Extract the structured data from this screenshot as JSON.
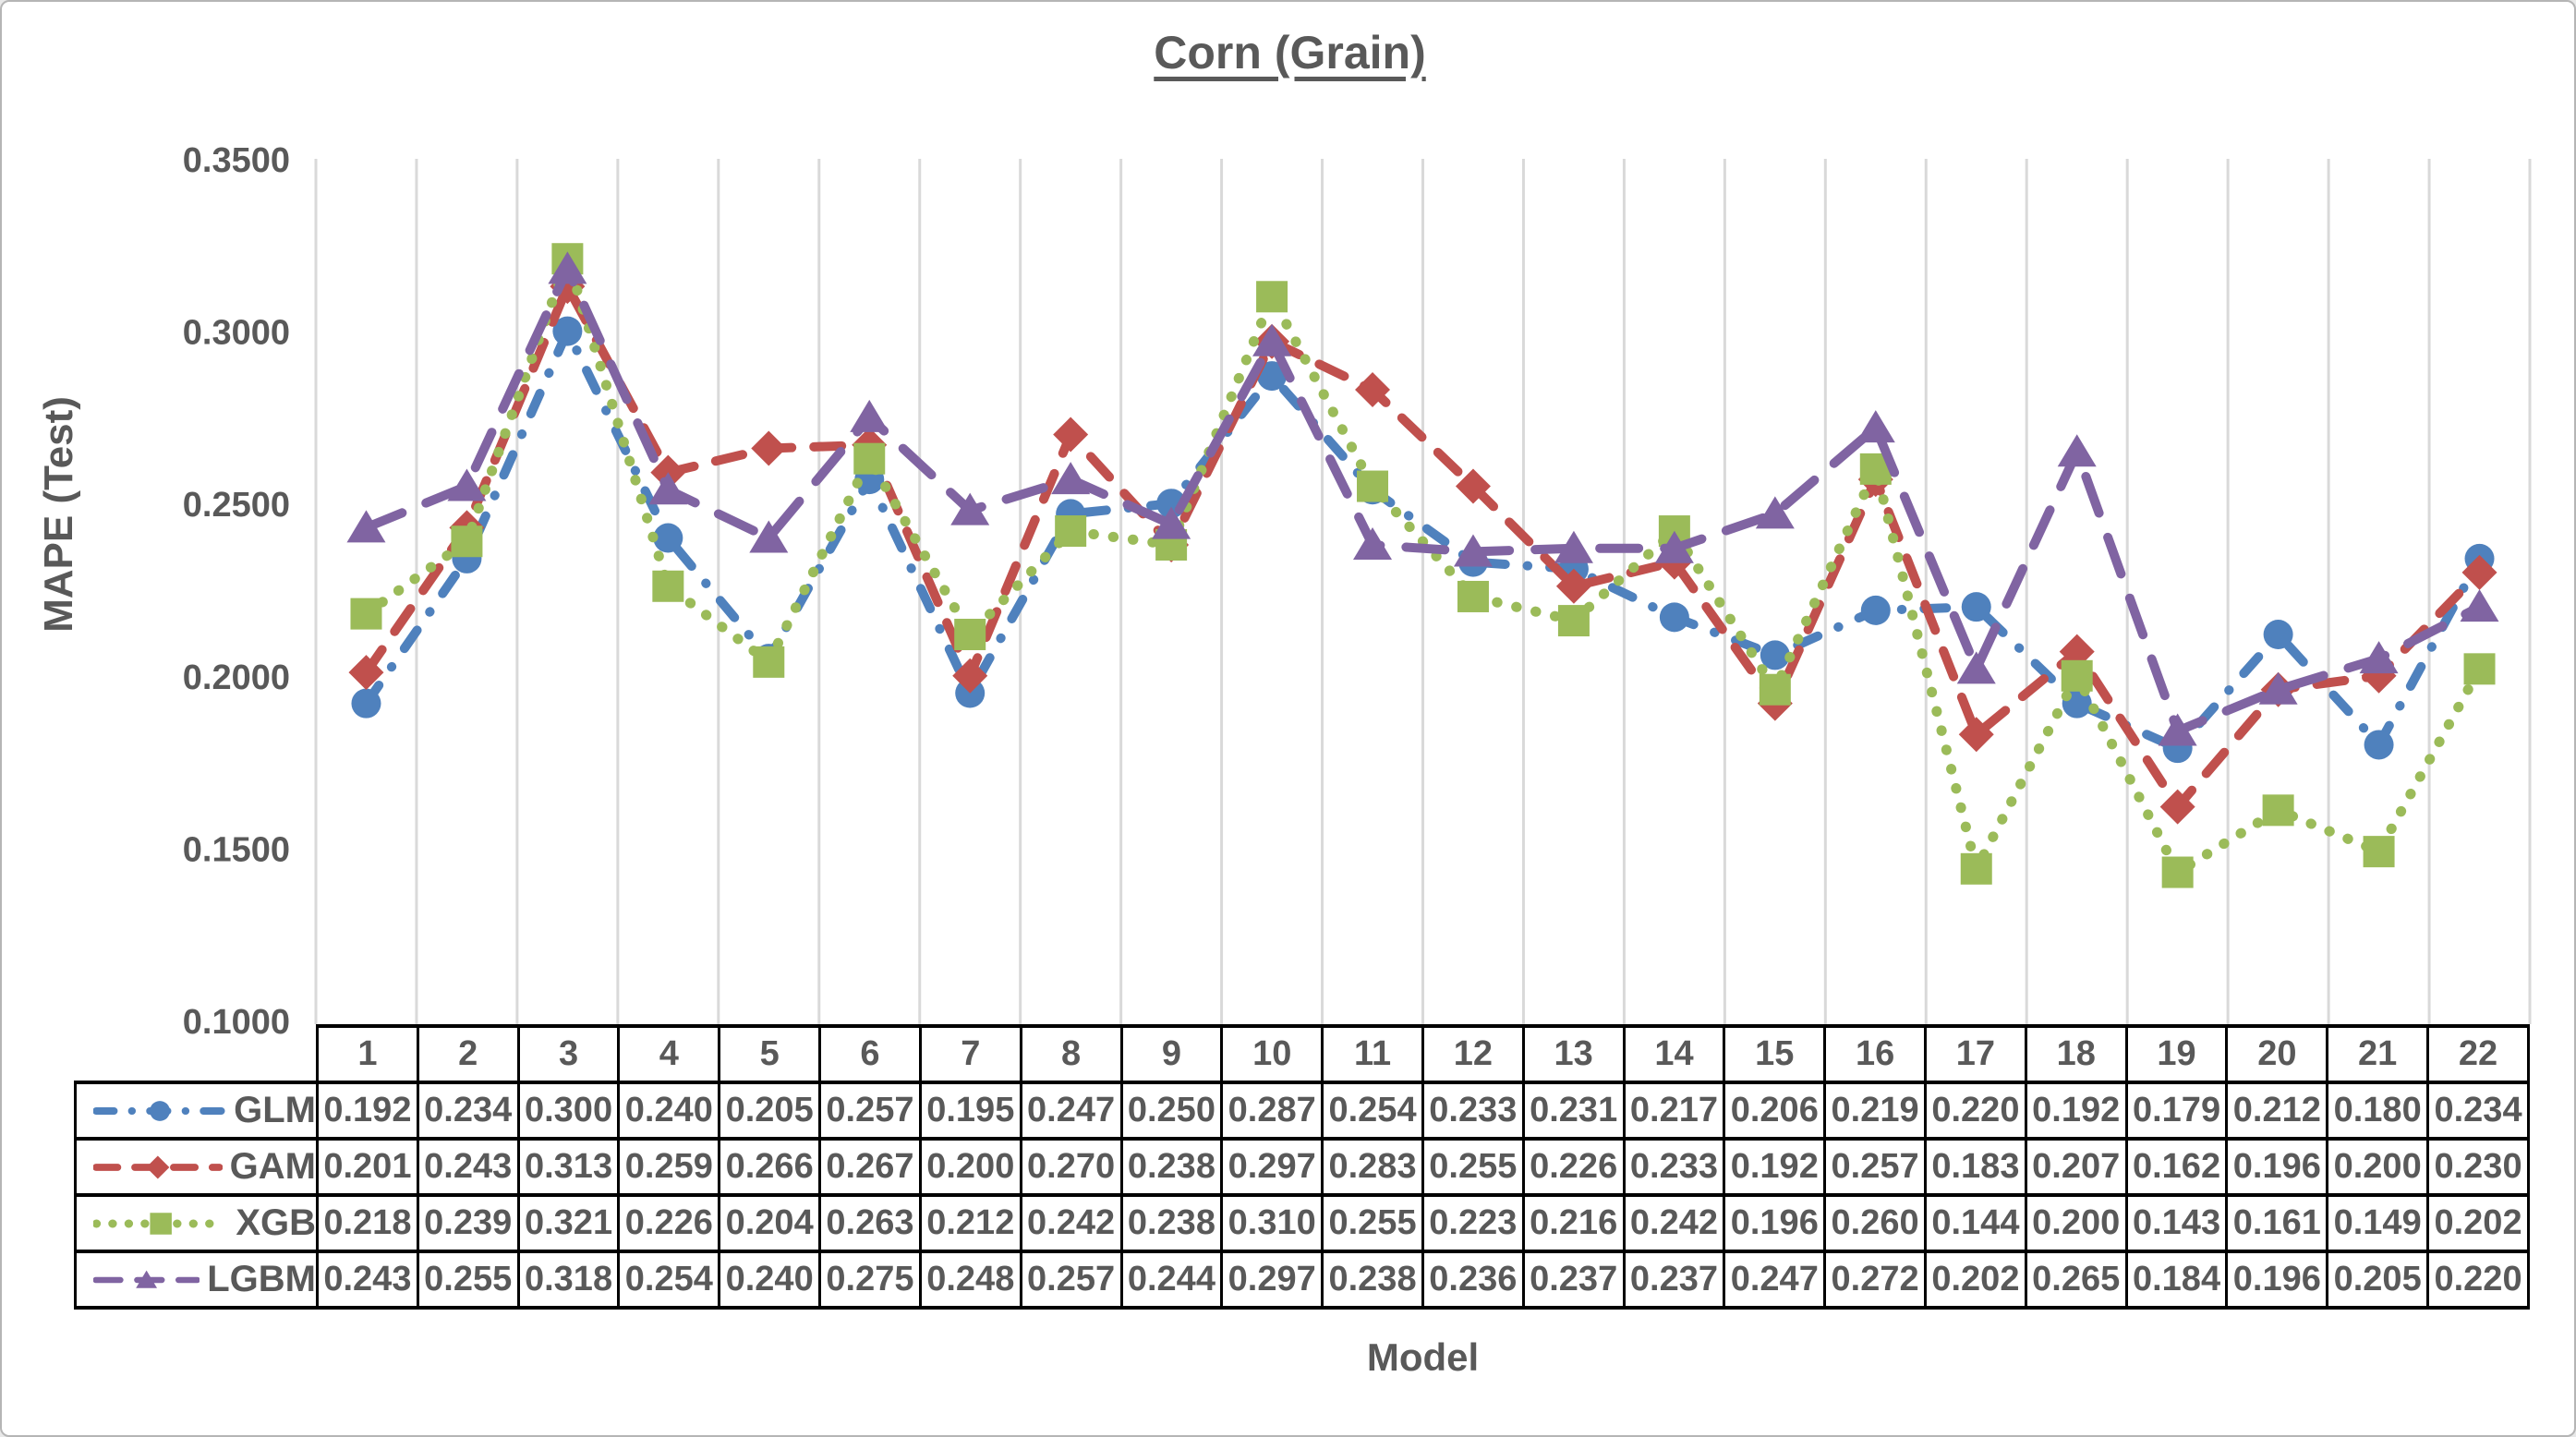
{
  "title": "Corn (Grain)",
  "y_axis": {
    "label": "MAPE (Test)",
    "tick_labels": [
      "0.3500",
      "0.3000",
      "0.2500",
      "0.2000",
      "0.1500",
      "0.1000"
    ]
  },
  "x_axis": {
    "label": "Model"
  },
  "chart_data": {
    "type": "line",
    "title": "Corn (Grain)",
    "xlabel": "Model",
    "ylabel": "MAPE (Test)",
    "categories": [
      1,
      2,
      3,
      4,
      5,
      6,
      7,
      8,
      9,
      10,
      11,
      12,
      13,
      14,
      15,
      16,
      17,
      18,
      19,
      20,
      21,
      22
    ],
    "ylim": [
      0.1,
      0.35
    ],
    "ytick_step": 0.05,
    "ytick_decimals": 4,
    "value_decimals": 3,
    "grid": "vertical-only",
    "legend_position": "table-left",
    "gridline_color": "#D9D9D9",
    "text_color": "#595959",
    "table_border_color": "#000000",
    "series": [
      {
        "name": "GLM",
        "color": "#4F81BD",
        "marker": "circle",
        "dash": "dash-dot",
        "values": [
          0.192,
          0.234,
          0.3,
          0.24,
          0.205,
          0.257,
          0.195,
          0.247,
          0.25,
          0.287,
          0.254,
          0.233,
          0.231,
          0.217,
          0.206,
          0.219,
          0.22,
          0.192,
          0.179,
          0.212,
          0.18,
          0.234
        ]
      },
      {
        "name": "GAM",
        "color": "#C0504D",
        "marker": "diamond",
        "dash": "dash",
        "values": [
          0.201,
          0.243,
          0.313,
          0.259,
          0.266,
          0.267,
          0.2,
          0.27,
          0.238,
          0.297,
          0.283,
          0.255,
          0.226,
          0.233,
          0.192,
          0.257,
          0.183,
          0.207,
          0.162,
          0.196,
          0.2,
          0.23
        ]
      },
      {
        "name": "XGB",
        "color": "#9BBB59",
        "marker": "square",
        "dash": "dot",
        "values": [
          0.218,
          0.239,
          0.321,
          0.226,
          0.204,
          0.263,
          0.212,
          0.242,
          0.238,
          0.31,
          0.255,
          0.223,
          0.216,
          0.242,
          0.196,
          0.26,
          0.144,
          0.2,
          0.143,
          0.161,
          0.149,
          0.202
        ]
      },
      {
        "name": "LGBM",
        "color": "#8064A2",
        "marker": "triangle",
        "dash": "long-dash",
        "values": [
          0.243,
          0.255,
          0.318,
          0.254,
          0.24,
          0.275,
          0.248,
          0.257,
          0.244,
          0.297,
          0.238,
          0.236,
          0.237,
          0.237,
          0.247,
          0.272,
          0.202,
          0.265,
          0.184,
          0.196,
          0.205,
          0.22
        ]
      }
    ]
  }
}
